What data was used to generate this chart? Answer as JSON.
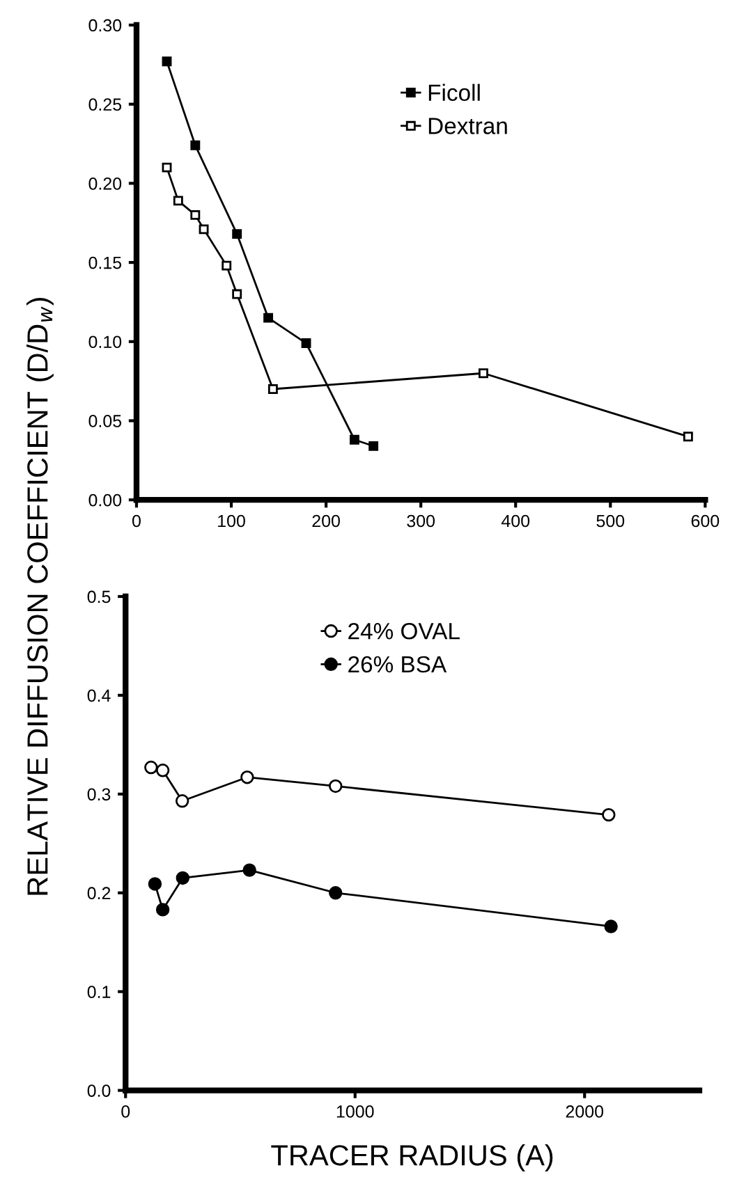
{
  "chart_data": [
    {
      "type": "line",
      "ylabel": "RELATIVE DIFFUSION COEFFICIENT (D/D$_{w}$)",
      "xlim": [
        0,
        600
      ],
      "xticks": [
        0,
        100,
        200,
        300,
        400,
        500,
        600
      ],
      "ylim": [
        0,
        0.3
      ],
      "yticks": [
        {
          "value": 0,
          "label": "0.00"
        },
        {
          "value": 0.05,
          "label": "0.05"
        },
        {
          "value": 0.1,
          "label": "0.10"
        },
        {
          "value": 0.15,
          "label": "0.15"
        },
        {
          "value": 0.2,
          "label": "0.20"
        },
        {
          "value": 0.25,
          "label": "0.25"
        },
        {
          "value": 0.3,
          "label": "0.30"
        }
      ],
      "grid": false,
      "legend": "top",
      "line_style": "solid",
      "series": [
        {
          "name": "Ficoll",
          "color": "#000000",
          "marker": "square",
          "x": [
            32,
            62,
            106,
            139,
            179,
            230,
            250
          ],
          "values": [
            0.277,
            0.224,
            0.168,
            0.115,
            0.099,
            0.038,
            0.034
          ]
        },
        {
          "name": "Dextran",
          "color": "#000000",
          "marker": "square",
          "x": [
            32,
            44,
            62,
            71,
            95,
            106,
            144,
            366,
            582
          ],
          "values": [
            0.21,
            0.189,
            0.18,
            0.171,
            0.148,
            0.13,
            0.07,
            0.08,
            0.04
          ]
        }
      ]
    },
    {
      "type": "line",
      "xlabel": "TRACER RADIUS (A)",
      "xlim": [
        0,
        2500
      ],
      "xticks": [
        0,
        1000,
        2000
      ],
      "ylim": [
        0,
        0.5
      ],
      "yticks": [
        {
          "value": 0,
          "label": "0.0"
        },
        {
          "value": 0.1,
          "label": "0.1"
        },
        {
          "value": 0.2,
          "label": "0.2"
        },
        {
          "value": 0.3,
          "label": "0.3"
        },
        {
          "value": 0.4,
          "label": "0.4"
        },
        {
          "value": 0.5,
          "label": "0.5"
        }
      ],
      "grid": false,
      "legend": "top right",
      "line_style": "solid",
      "series": [
        {
          "name": "24% OVAL",
          "color": "#000000",
          "marker": "circle",
          "x": [
            111,
            162,
            247,
            530,
            915,
            2105
          ],
          "values": [
            0.327,
            0.324,
            0.293,
            0.317,
            0.308,
            0.279
          ]
        },
        {
          "name": "26% BSA",
          "color": "#000000",
          "marker": "circle",
          "x": [
            128,
            162,
            249,
            540,
            915,
            2115
          ],
          "values": [
            0.209,
            0.183,
            0.215,
            0.223,
            0.2,
            0.166
          ]
        }
      ]
    }
  ]
}
